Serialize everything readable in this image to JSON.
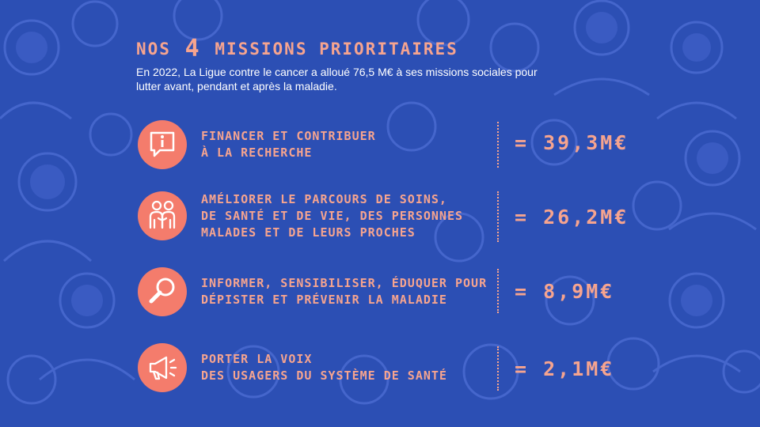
{
  "title": {
    "prefix": "NOS",
    "number": "4",
    "suffix": "MISSIONS PRIORITAIRES"
  },
  "intro": "En 2022, La Ligue contre le cancer a alloué 76,5 M€ à ses missions sociales pour lutter avant, pendant et après la maladie.",
  "missions": [
    {
      "label": "FINANCER ET CONTRIBUER\nÀ LA RECHERCHE",
      "amount": "= 39,3M€",
      "icon": "info-bubble-icon"
    },
    {
      "label": "AMÉLIORER LE PARCOURS DE SOINS,\nDE SANTÉ ET DE VIE, DES PERSONNES\nMALADES ET DE LEURS PROCHES",
      "amount": "= 26,2M€",
      "icon": "people-icon"
    },
    {
      "label": "INFORMER, SENSIBILISER, ÉDUQUER POUR\nDÉPISTER ET PRÉVENIR LA MALADIE",
      "amount": "= 8,9M€",
      "icon": "magnifier-icon"
    },
    {
      "label": "PORTER LA VOIX\nDES USAGERS DU SYSTÈME DE SANTÉ",
      "amount": "= 2,1M€",
      "icon": "megaphone-icon"
    }
  ],
  "colors": {
    "background": "#2c4fb4",
    "pattern": "#3d5fc6",
    "accent": "#f6a48f",
    "icon_circle": "#f47c6c",
    "intro_text": "#ffffff"
  }
}
